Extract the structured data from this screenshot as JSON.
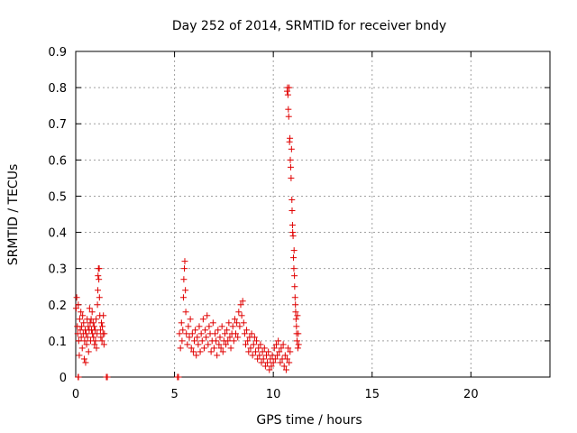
{
  "chart_data": {
    "type": "scatter",
    "title": "Day 252 of 2014, SRMTID for receiver bndy",
    "xlabel": "GPS time / hours",
    "ylabel": "SRMTID / TECUs",
    "xlim": [
      0,
      24
    ],
    "ylim": [
      0,
      0.9
    ],
    "xticks": [
      0,
      5,
      10,
      15,
      20
    ],
    "yticks": [
      0,
      0.1,
      0.2,
      0.3,
      0.4,
      0.5,
      0.6,
      0.7,
      0.8,
      0.9
    ],
    "grid": true,
    "marker": "+",
    "color": "#e00000",
    "series": [
      {
        "name": "SRMTID",
        "points": [
          [
            0.02,
            0.19
          ],
          [
            0.05,
            0.22
          ],
          [
            0.08,
            0.14
          ],
          [
            0.1,
            0.12
          ],
          [
            0.13,
            0.2
          ],
          [
            0.15,
            0.1
          ],
          [
            0.18,
            0.06
          ],
          [
            0.2,
            0.16
          ],
          [
            0.23,
            0.13
          ],
          [
            0.26,
            0.18
          ],
          [
            0.28,
            0.11
          ],
          [
            0.3,
            0.14
          ],
          [
            0.33,
            0.08
          ],
          [
            0.35,
            0.17
          ],
          [
            0.38,
            0.12
          ],
          [
            0.4,
            0.15
          ],
          [
            0.43,
            0.05
          ],
          [
            0.45,
            0.1
          ],
          [
            0.48,
            0.13
          ],
          [
            0.5,
            0.04
          ],
          [
            0.53,
            0.12
          ],
          [
            0.55,
            0.09
          ],
          [
            0.58,
            0.16
          ],
          [
            0.6,
            0.11
          ],
          [
            0.63,
            0.14
          ],
          [
            0.65,
            0.07
          ],
          [
            0.68,
            0.13
          ],
          [
            0.7,
            0.19
          ],
          [
            0.73,
            0.15
          ],
          [
            0.75,
            0.1
          ],
          [
            0.78,
            0.16
          ],
          [
            0.8,
            0.13
          ],
          [
            0.83,
            0.18
          ],
          [
            0.85,
            0.12
          ],
          [
            0.88,
            0.15
          ],
          [
            0.9,
            0.11
          ],
          [
            0.93,
            0.14
          ],
          [
            0.95,
            0.09
          ],
          [
            0.98,
            0.13
          ],
          [
            1.0,
            0.1
          ],
          [
            1.03,
            0.16
          ],
          [
            1.05,
            0.08
          ],
          [
            1.08,
            0.12
          ],
          [
            1.1,
            0.2
          ],
          [
            1.12,
            0.24
          ],
          [
            1.13,
            0.28
          ],
          [
            1.15,
            0.3
          ],
          [
            1.17,
            0.27
          ],
          [
            1.19,
            0.3
          ],
          [
            1.2,
            0.22
          ],
          [
            1.22,
            0.17
          ],
          [
            1.25,
            0.13
          ],
          [
            1.27,
            0.11
          ],
          [
            1.3,
            0.15
          ],
          [
            1.33,
            0.1
          ],
          [
            1.35,
            0.14
          ],
          [
            1.38,
            0.12
          ],
          [
            1.4,
            0.17
          ],
          [
            1.43,
            0.09
          ],
          [
            1.45,
            0.12
          ],
          [
            1.55,
            0.0
          ],
          [
            1.6,
            0.0
          ],
          [
            0.12,
            0.0
          ],
          [
            0.14,
            0.0
          ],
          [
            5.15,
            0.0
          ],
          [
            5.2,
            0.0
          ],
          [
            5.25,
            0.12
          ],
          [
            5.3,
            0.08
          ],
          [
            5.35,
            0.15
          ],
          [
            5.38,
            0.1
          ],
          [
            5.42,
            0.13
          ],
          [
            5.45,
            0.22
          ],
          [
            5.47,
            0.27
          ],
          [
            5.5,
            0.3
          ],
          [
            5.52,
            0.32
          ],
          [
            5.55,
            0.24
          ],
          [
            5.57,
            0.18
          ],
          [
            5.6,
            0.12
          ],
          [
            5.65,
            0.09
          ],
          [
            5.7,
            0.14
          ],
          [
            5.75,
            0.11
          ],
          [
            5.8,
            0.16
          ],
          [
            5.85,
            0.08
          ],
          [
            5.9,
            0.12
          ],
          [
            5.95,
            0.07
          ],
          [
            6.0,
            0.1
          ],
          [
            6.05,
            0.13
          ],
          [
            6.1,
            0.06
          ],
          [
            6.15,
            0.11
          ],
          [
            6.2,
            0.09
          ],
          [
            6.25,
            0.14
          ],
          [
            6.3,
            0.07
          ],
          [
            6.35,
            0.12
          ],
          [
            6.4,
            0.1
          ],
          [
            6.45,
            0.16
          ],
          [
            6.5,
            0.08
          ],
          [
            6.55,
            0.13
          ],
          [
            6.6,
            0.11
          ],
          [
            6.65,
            0.17
          ],
          [
            6.7,
            0.09
          ],
          [
            6.75,
            0.14
          ],
          [
            6.8,
            0.12
          ],
          [
            6.85,
            0.07
          ],
          [
            6.9,
            0.1
          ],
          [
            6.95,
            0.15
          ],
          [
            7.0,
            0.08
          ],
          [
            7.05,
            0.12
          ],
          [
            7.1,
            0.1
          ],
          [
            7.15,
            0.06
          ],
          [
            7.2,
            0.13
          ],
          [
            7.25,
            0.09
          ],
          [
            7.3,
            0.11
          ],
          [
            7.35,
            0.08
          ],
          [
            7.4,
            0.14
          ],
          [
            7.45,
            0.07
          ],
          [
            7.5,
            0.1
          ],
          [
            7.55,
            0.12
          ],
          [
            7.6,
            0.09
          ],
          [
            7.65,
            0.13
          ],
          [
            7.7,
            0.1
          ],
          [
            7.75,
            0.15
          ],
          [
            7.8,
            0.11
          ],
          [
            7.85,
            0.08
          ],
          [
            7.9,
            0.12
          ],
          [
            7.95,
            0.14
          ],
          [
            8.0,
            0.1
          ],
          [
            8.05,
            0.16
          ],
          [
            8.1,
            0.12
          ],
          [
            8.15,
            0.15
          ],
          [
            8.2,
            0.11
          ],
          [
            8.25,
            0.18
          ],
          [
            8.3,
            0.14
          ],
          [
            8.35,
            0.2
          ],
          [
            8.4,
            0.17
          ],
          [
            8.45,
            0.21
          ],
          [
            8.5,
            0.15
          ],
          [
            8.55,
            0.12
          ],
          [
            8.6,
            0.09
          ],
          [
            8.65,
            0.13
          ],
          [
            8.7,
            0.1
          ],
          [
            8.75,
            0.07
          ],
          [
            8.8,
            0.11
          ],
          [
            8.85,
            0.08
          ],
          [
            8.9,
            0.12
          ],
          [
            8.95,
            0.06
          ],
          [
            9.0,
            0.09
          ],
          [
            9.05,
            0.11
          ],
          [
            9.1,
            0.07
          ],
          [
            9.15,
            0.1
          ],
          [
            9.2,
            0.05
          ],
          [
            9.25,
            0.08
          ],
          [
            9.3,
            0.06
          ],
          [
            9.35,
            0.09
          ],
          [
            9.4,
            0.04
          ],
          [
            9.45,
            0.07
          ],
          [
            9.5,
            0.05
          ],
          [
            9.55,
            0.08
          ],
          [
            9.6,
            0.03
          ],
          [
            9.65,
            0.06
          ],
          [
            9.7,
            0.04
          ],
          [
            9.75,
            0.07
          ],
          [
            9.8,
            0.02
          ],
          [
            9.85,
            0.05
          ],
          [
            9.9,
            0.03
          ],
          [
            9.95,
            0.06
          ],
          [
            10.0,
            0.04
          ],
          [
            10.05,
            0.08
          ],
          [
            10.1,
            0.05
          ],
          [
            10.15,
            0.09
          ],
          [
            10.2,
            0.06
          ],
          [
            10.25,
            0.1
          ],
          [
            10.3,
            0.07
          ],
          [
            10.35,
            0.04
          ],
          [
            10.4,
            0.08
          ],
          [
            10.45,
            0.05
          ],
          [
            10.5,
            0.09
          ],
          [
            10.55,
            0.03
          ],
          [
            10.6,
            0.06
          ],
          [
            10.65,
            0.02
          ],
          [
            10.7,
            0.05
          ],
          [
            10.75,
            0.08
          ],
          [
            10.8,
            0.04
          ],
          [
            10.85,
            0.07
          ],
          [
            10.7,
            0.79
          ],
          [
            10.72,
            0.8
          ],
          [
            10.74,
            0.78
          ],
          [
            10.76,
            0.74
          ],
          [
            10.78,
            0.72
          ],
          [
            10.8,
            0.8
          ],
          [
            10.82,
            0.65
          ],
          [
            10.84,
            0.66
          ],
          [
            10.86,
            0.6
          ],
          [
            10.88,
            0.58
          ],
          [
            10.9,
            0.55
          ],
          [
            10.92,
            0.63
          ],
          [
            10.94,
            0.49
          ],
          [
            10.95,
            0.46
          ],
          [
            10.97,
            0.42
          ],
          [
            10.98,
            0.4
          ],
          [
            11.0,
            0.39
          ],
          [
            11.02,
            0.33
          ],
          [
            11.04,
            0.3
          ],
          [
            11.05,
            0.35
          ],
          [
            11.07,
            0.28
          ],
          [
            11.08,
            0.25
          ],
          [
            11.1,
            0.22
          ],
          [
            11.12,
            0.2
          ],
          [
            11.13,
            0.18
          ],
          [
            11.15,
            0.16
          ],
          [
            11.17,
            0.14
          ],
          [
            11.18,
            0.12
          ],
          [
            11.2,
            0.1
          ],
          [
            11.22,
            0.17
          ],
          [
            11.24,
            0.08
          ],
          [
            11.26,
            0.12
          ],
          [
            11.28,
            0.09
          ]
        ]
      }
    ]
  }
}
